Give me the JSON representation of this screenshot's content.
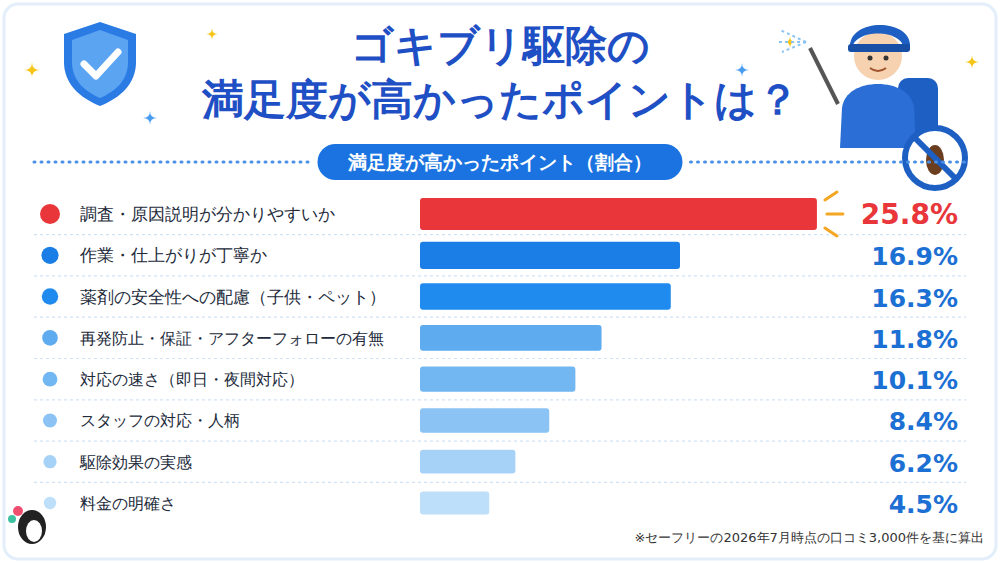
{
  "chart_data": {
    "type": "bar",
    "orientation": "horizontal",
    "title": "ゴキブリ駆除の\n満足度が高かったポイントは？",
    "subtitle": "満足度が高かったポイント（割合）",
    "categories": [
      "調査・原因説明が分かりやすいか",
      "作業・仕上がりが丁寧か",
      "薬剤の安全性への配慮（子供・ペット）",
      "再発防止・保証・アフターフォローの有無",
      "対応の速さ（即日・夜間対応）",
      "スタッフの対応・人柄",
      "駆除効果の実感",
      "料金の明確さ"
    ],
    "values": [
      25.8,
      16.9,
      16.3,
      11.8,
      10.1,
      8.4,
      6.2,
      4.5
    ],
    "value_labels": [
      "25.8%",
      "16.9%",
      "16.3%",
      "11.8%",
      "10.1%",
      "8.4%",
      "6.2%",
      "4.5%"
    ],
    "colors": [
      "#e8363b",
      "#1a7ee6",
      "#1f8bef",
      "#5eacef",
      "#72b7f2",
      "#8ac3f4",
      "#a6d2f7",
      "#bddff9"
    ],
    "xlim": [
      0,
      26
    ],
    "data_labels": true,
    "tick_labels": false,
    "grid": false,
    "annotations": [
      "※セーフリーの2026年7月時点の口コミ3,000件を基に算出"
    ]
  }
}
